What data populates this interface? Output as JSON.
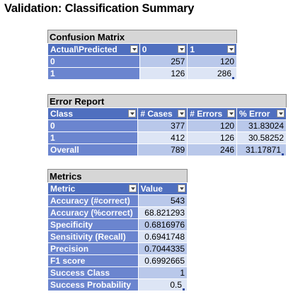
{
  "title": "Validation: Classification Summary",
  "confusion": {
    "caption": "Confusion Matrix",
    "headers": [
      "Actual\\Predicted",
      "0",
      "1"
    ],
    "rows": [
      {
        "label": "0",
        "c0": "257",
        "c1": "120"
      },
      {
        "label": "1",
        "c0": "126",
        "c1": "286"
      }
    ]
  },
  "errors": {
    "caption": "Error Report",
    "headers": [
      "Class",
      "# Cases",
      "# Errors",
      "% Error"
    ],
    "rows": [
      {
        "label": "0",
        "cases": "377",
        "errs": "120",
        "pct": "31.83024"
      },
      {
        "label": "1",
        "cases": "412",
        "errs": "126",
        "pct": "30.58252"
      },
      {
        "label": "Overall",
        "cases": "789",
        "errs": "246",
        "pct": "31.17871"
      }
    ]
  },
  "metrics": {
    "caption": "Metrics",
    "headers": [
      "Metric",
      "Value"
    ],
    "rows": [
      {
        "label": "Accuracy (#correct)",
        "value": "543"
      },
      {
        "label": "Accuracy (%correct)",
        "value": "68.821293"
      },
      {
        "label": "Specificity",
        "value": "0.6816976"
      },
      {
        "label": "Sensitivity (Recall)",
        "value": "0.6941748"
      },
      {
        "label": "Precision",
        "value": "0.7044335"
      },
      {
        "label": "F1 score",
        "value": "0.6992665"
      },
      {
        "label": "Success Class",
        "value": "1"
      },
      {
        "label": "Success Probability",
        "value": "0.5"
      }
    ]
  },
  "colors": {
    "header": "#4f6fbf",
    "label": "#6b85cf",
    "value_dark": "#b9c8ea",
    "value_light": "#dde5f5",
    "caption": "#d6d6d6"
  }
}
